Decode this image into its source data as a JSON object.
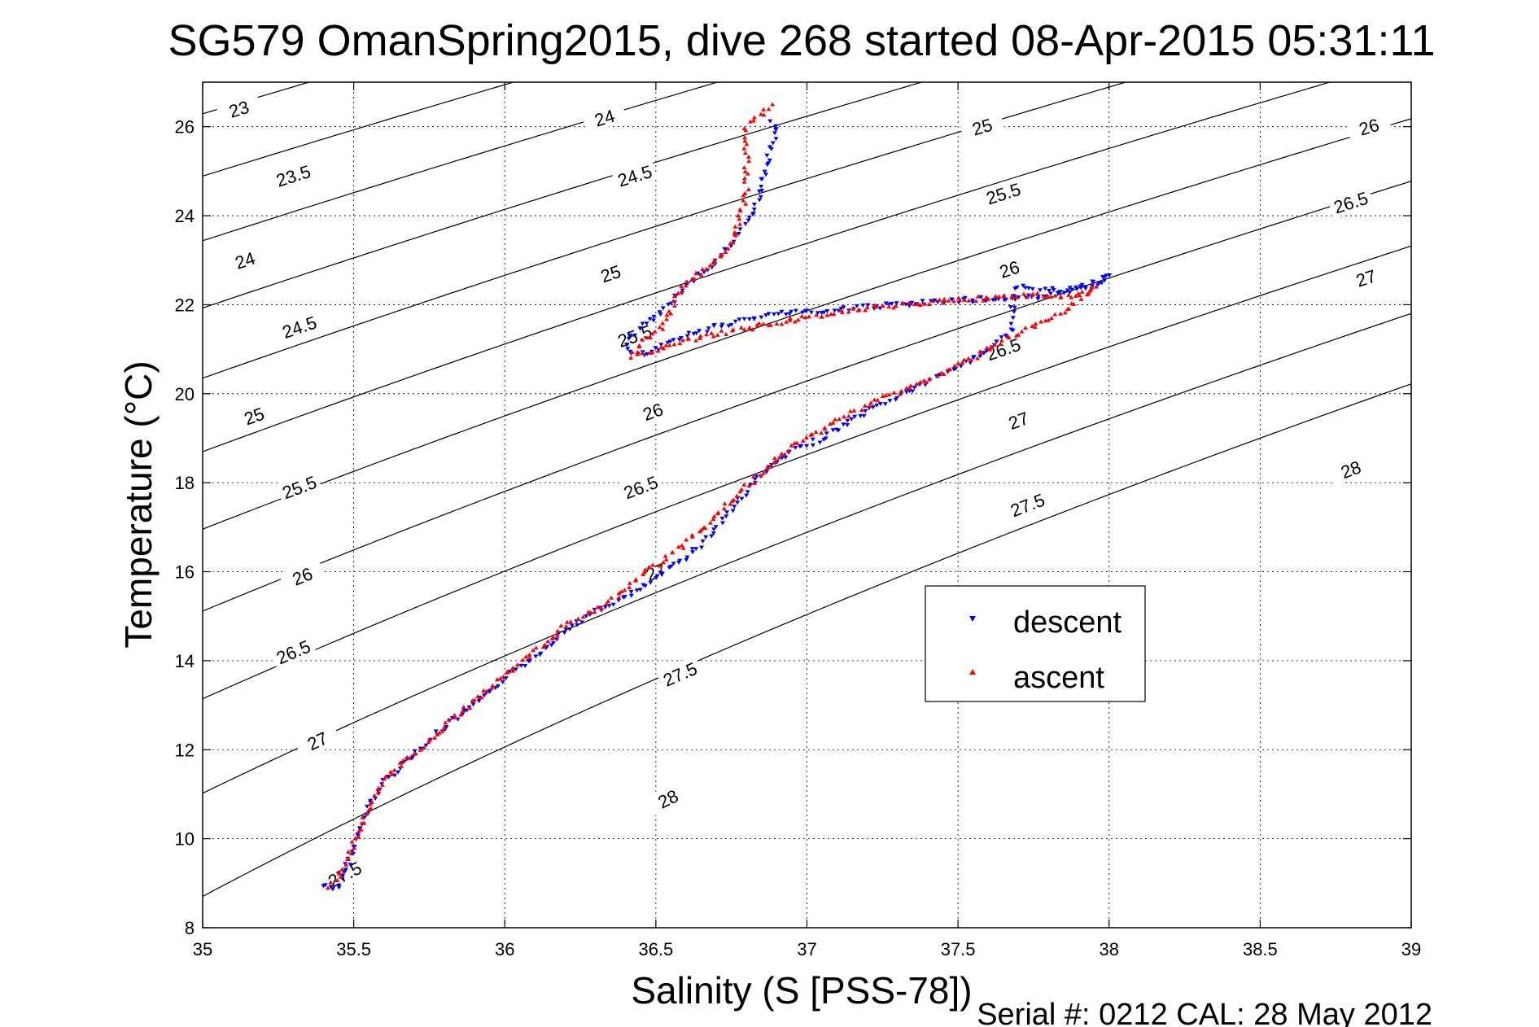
{
  "chart_data": {
    "type": "scatter",
    "title": "SG579 OmanSpring2015, dive 268 started 08-Apr-2015 05:31:11",
    "xlabel": "Salinity (S [PSS-78])",
    "ylabel": "Temperature (°C)",
    "footer": "Serial #: 0212  CAL: 28 May 2012",
    "xlim": [
      35,
      39
    ],
    "ylim": [
      8,
      27
    ],
    "x_ticks": [
      35,
      35.5,
      36,
      36.5,
      37,
      37.5,
      38,
      38.5,
      39
    ],
    "x_tick_labels": [
      "35",
      "35.5",
      "36",
      "36.5",
      "37",
      "37.5",
      "38",
      "38.5",
      "39"
    ],
    "y_ticks": [
      8,
      10,
      12,
      14,
      16,
      18,
      20,
      22,
      24,
      26
    ],
    "y_tick_labels": [
      "8",
      "10",
      "12",
      "14",
      "16",
      "18",
      "20",
      "22",
      "24",
      "26"
    ],
    "grid": true,
    "legend": "center-right",
    "density_contours": {
      "levels": [
        23,
        23.5,
        24,
        24.5,
        25,
        25.5,
        26,
        26.5,
        27,
        27.5,
        28
      ],
      "labels": [
        "23",
        "23.5",
        "24",
        "24.5",
        "25",
        "25.5",
        "26",
        "26.5",
        "27",
        "27.5",
        "28"
      ],
      "label_positions": [
        [
          {
            "s": 35.12,
            "t": 26.4
          },
          null
        ],
        [
          {
            "s": 35.3,
            "t": 24.9
          },
          null
        ],
        [
          {
            "s": 35.14,
            "t": 23.0
          },
          {
            "s": 36.33,
            "t": 26.2
          }
        ],
        [
          {
            "s": 35.32,
            "t": 21.5
          },
          {
            "s": 36.43,
            "t": 24.9
          }
        ],
        [
          {
            "s": 35.17,
            "t": 19.5
          },
          {
            "s": 36.35,
            "t": 22.7
          },
          {
            "s": 37.58,
            "t": 26.0
          }
        ],
        [
          {
            "s": 35.32,
            "t": 17.9
          },
          {
            "s": 36.43,
            "t": 21.3
          },
          {
            "s": 37.65,
            "t": 24.5
          }
        ],
        [
          {
            "s": 35.33,
            "t": 15.9
          },
          {
            "s": 36.49,
            "t": 19.6
          },
          {
            "s": 37.67,
            "t": 22.8
          },
          {
            "s": 38.86,
            "t": 26.0
          }
        ],
        [
          {
            "s": 35.3,
            "t": 14.2
          },
          {
            "s": 36.45,
            "t": 17.9
          },
          {
            "s": 37.65,
            "t": 21.0
          },
          {
            "s": 38.8,
            "t": 24.3
          }
        ],
        [
          {
            "s": 35.38,
            "t": 12.2
          },
          {
            "s": 36.5,
            "t": 16.0
          },
          {
            "s": 37.7,
            "t": 19.4
          },
          {
            "s": 38.85,
            "t": 22.6
          }
        ],
        [
          {
            "s": 35.47,
            "t": 9.2
          },
          {
            "s": 36.58,
            "t": 13.7
          },
          {
            "s": 37.73,
            "t": 17.5
          },
          null
        ],
        [
          {
            "s": 36.54,
            "t": 10.9
          },
          {
            "s": 38.8,
            "t": 18.3
          }
        ]
      ]
    },
    "series": [
      {
        "name": "descent",
        "marker": "triangle-down",
        "color": "#0000ff",
        "path": [
          [
            35.4,
            8.95
          ],
          [
            35.45,
            8.9
          ],
          [
            35.5,
            9.8
          ],
          [
            35.55,
            10.7
          ],
          [
            35.6,
            11.3
          ],
          [
            35.7,
            11.9
          ],
          [
            35.8,
            12.5
          ],
          [
            35.9,
            13.0
          ],
          [
            36.0,
            13.6
          ],
          [
            36.1,
            14.1
          ],
          [
            36.2,
            14.7
          ],
          [
            36.3,
            15.1
          ],
          [
            36.45,
            15.6
          ],
          [
            36.55,
            16.1
          ],
          [
            36.65,
            16.6
          ],
          [
            36.75,
            17.4
          ],
          [
            36.85,
            18.2
          ],
          [
            36.95,
            18.7
          ],
          [
            37.05,
            19.0
          ],
          [
            37.2,
            19.6
          ],
          [
            37.35,
            20.1
          ],
          [
            37.5,
            20.6
          ],
          [
            37.6,
            21.0
          ],
          [
            37.68,
            21.4
          ],
          [
            37.68,
            21.9
          ],
          [
            37.7,
            22.4
          ],
          [
            37.85,
            22.3
          ],
          [
            37.95,
            22.5
          ],
          [
            38.0,
            22.7
          ],
          [
            37.95,
            22.4
          ],
          [
            37.8,
            22.2
          ],
          [
            37.5,
            22.1
          ],
          [
            37.3,
            22.0
          ],
          [
            37.1,
            21.9
          ],
          [
            36.9,
            21.8
          ],
          [
            36.75,
            21.6
          ],
          [
            36.6,
            21.3
          ],
          [
            36.5,
            21.0
          ],
          [
            36.45,
            20.9
          ],
          [
            36.4,
            21.0
          ],
          [
            36.42,
            21.3
          ],
          [
            36.47,
            21.6
          ],
          [
            36.53,
            21.9
          ],
          [
            36.58,
            22.3
          ],
          [
            36.63,
            22.6
          ],
          [
            36.7,
            23.0
          ],
          [
            36.78,
            23.6
          ],
          [
            36.82,
            24.1
          ],
          [
            36.85,
            24.6
          ],
          [
            36.87,
            25.3
          ],
          [
            36.9,
            25.9
          ],
          [
            36.88,
            26.2
          ]
        ]
      },
      {
        "name": "ascent",
        "marker": "triangle-up",
        "color": "#ff0000",
        "path": [
          [
            35.42,
            8.9
          ],
          [
            35.45,
            9.1
          ],
          [
            35.5,
            9.9
          ],
          [
            35.55,
            10.7
          ],
          [
            35.6,
            11.3
          ],
          [
            35.7,
            11.9
          ],
          [
            35.8,
            12.5
          ],
          [
            35.9,
            13.1
          ],
          [
            36.0,
            13.7
          ],
          [
            36.1,
            14.2
          ],
          [
            36.2,
            14.8
          ],
          [
            36.35,
            15.3
          ],
          [
            36.45,
            15.9
          ],
          [
            36.55,
            16.4
          ],
          [
            36.65,
            16.9
          ],
          [
            36.75,
            17.6
          ],
          [
            36.85,
            18.2
          ],
          [
            36.95,
            18.8
          ],
          [
            37.1,
            19.4
          ],
          [
            37.25,
            19.9
          ],
          [
            37.4,
            20.3
          ],
          [
            37.55,
            20.8
          ],
          [
            37.65,
            21.2
          ],
          [
            37.75,
            21.5
          ],
          [
            37.85,
            21.8
          ],
          [
            37.9,
            22.1
          ],
          [
            37.95,
            22.4
          ],
          [
            37.9,
            22.2
          ],
          [
            37.7,
            22.2
          ],
          [
            37.5,
            22.1
          ],
          [
            37.35,
            22.0
          ],
          [
            37.15,
            21.9
          ],
          [
            37.0,
            21.7
          ],
          [
            36.9,
            21.6
          ],
          [
            36.75,
            21.4
          ],
          [
            36.6,
            21.2
          ],
          [
            36.5,
            21.0
          ],
          [
            36.42,
            20.8
          ],
          [
            36.45,
            21.1
          ],
          [
            36.52,
            21.5
          ],
          [
            36.55,
            21.9
          ],
          [
            36.58,
            22.3
          ],
          [
            36.63,
            22.6
          ],
          [
            36.7,
            23.0
          ],
          [
            36.76,
            23.5
          ],
          [
            36.78,
            24.0
          ],
          [
            36.8,
            24.5
          ],
          [
            36.8,
            25.0
          ],
          [
            36.8,
            25.5
          ],
          [
            36.8,
            26.0
          ],
          [
            36.85,
            26.3
          ],
          [
            36.9,
            26.5
          ]
        ]
      }
    ]
  }
}
